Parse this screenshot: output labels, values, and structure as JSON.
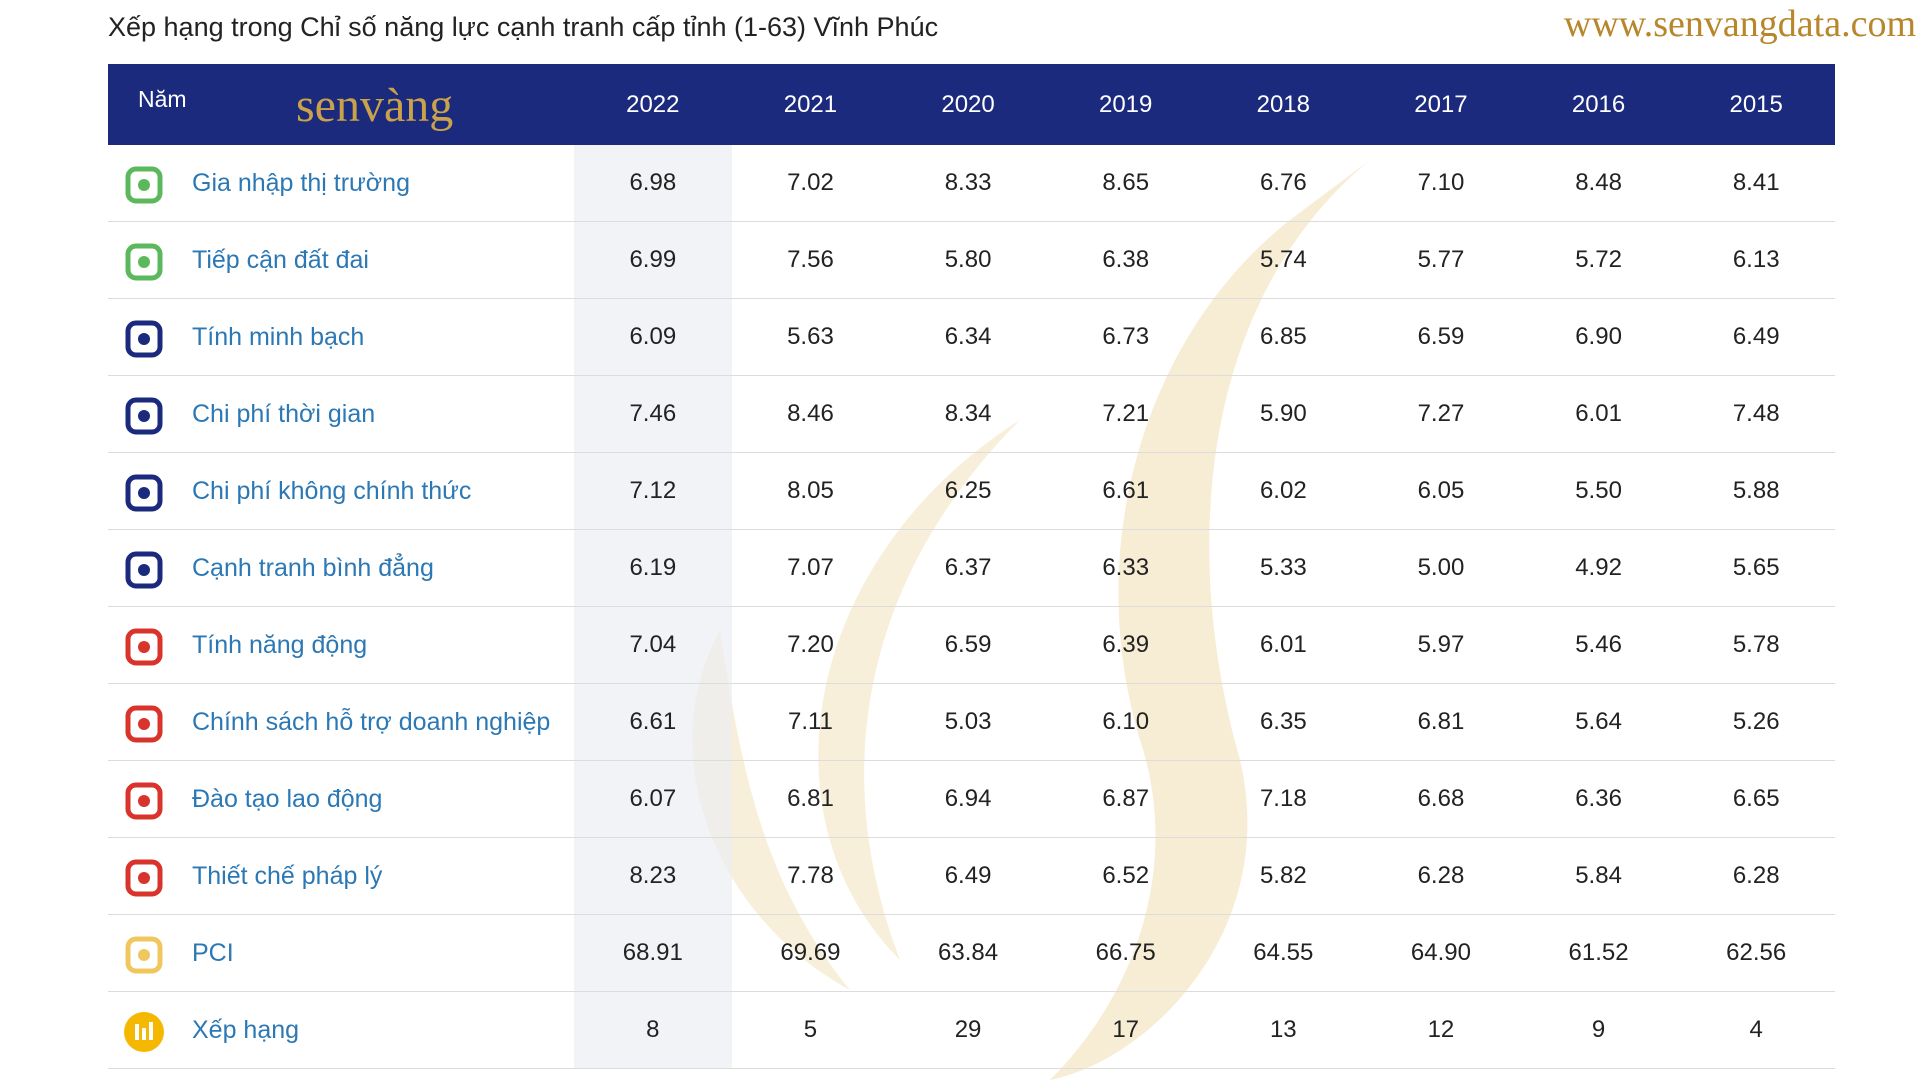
{
  "header": {
    "title": "Xếp hạng trong Chỉ số năng lực cạnh tranh cấp tỉnh (1-63) Vĩnh Phúc",
    "website": "www.senvangdata.com",
    "logo": "senvàng"
  },
  "table": {
    "corner": "Năm",
    "years": [
      "2022",
      "2021",
      "2020",
      "2019",
      "2018",
      "2017",
      "2016",
      "2015"
    ],
    "rows": [
      {
        "label": "Gia nhập thị trường",
        "values": [
          "6.98",
          "7.02",
          "8.33",
          "8.65",
          "6.76",
          "7.10",
          "8.48",
          "8.41"
        ]
      },
      {
        "label": "Tiếp cận đất đai",
        "values": [
          "6.99",
          "7.56",
          "5.80",
          "6.38",
          "5.74",
          "5.77",
          "5.72",
          "6.13"
        ]
      },
      {
        "label": "Tính minh bạch",
        "values": [
          "6.09",
          "5.63",
          "6.34",
          "6.73",
          "6.85",
          "6.59",
          "6.90",
          "6.49"
        ]
      },
      {
        "label": "Chi phí thời gian",
        "values": [
          "7.46",
          "8.46",
          "8.34",
          "7.21",
          "5.90",
          "7.27",
          "6.01",
          "7.48"
        ]
      },
      {
        "label": "Chi phí không chính thức",
        "values": [
          "7.12",
          "8.05",
          "6.25",
          "6.61",
          "6.02",
          "6.05",
          "5.50",
          "5.88"
        ]
      },
      {
        "label": "Cạnh tranh bình đẳng",
        "values": [
          "6.19",
          "7.07",
          "6.37",
          "6.33",
          "5.33",
          "5.00",
          "4.92",
          "5.65"
        ]
      },
      {
        "label": "Tính năng động",
        "values": [
          "7.04",
          "7.20",
          "6.59",
          "6.39",
          "6.01",
          "5.97",
          "5.46",
          "5.78"
        ]
      },
      {
        "label": "Chính sách hỗ trợ doanh nghiệp",
        "values": [
          "6.61",
          "7.11",
          "5.03",
          "6.10",
          "6.35",
          "6.81",
          "5.64",
          "5.26"
        ]
      },
      {
        "label": "Đào tạo lao động",
        "values": [
          "6.07",
          "6.81",
          "6.94",
          "6.87",
          "7.18",
          "6.68",
          "6.36",
          "6.65"
        ]
      },
      {
        "label": "Thiết chế pháp lý",
        "values": [
          "8.23",
          "7.78",
          "6.49",
          "6.52",
          "5.82",
          "6.28",
          "5.84",
          "6.28"
        ]
      },
      {
        "label": "PCI",
        "values": [
          "68.91",
          "69.69",
          "63.84",
          "66.75",
          "64.55",
          "64.90",
          "61.52",
          "62.56"
        ]
      },
      {
        "label": "Xếp hạng",
        "values": [
          "8",
          "5",
          "29",
          "17",
          "13",
          "12",
          "9",
          "4"
        ]
      }
    ]
  }
}
